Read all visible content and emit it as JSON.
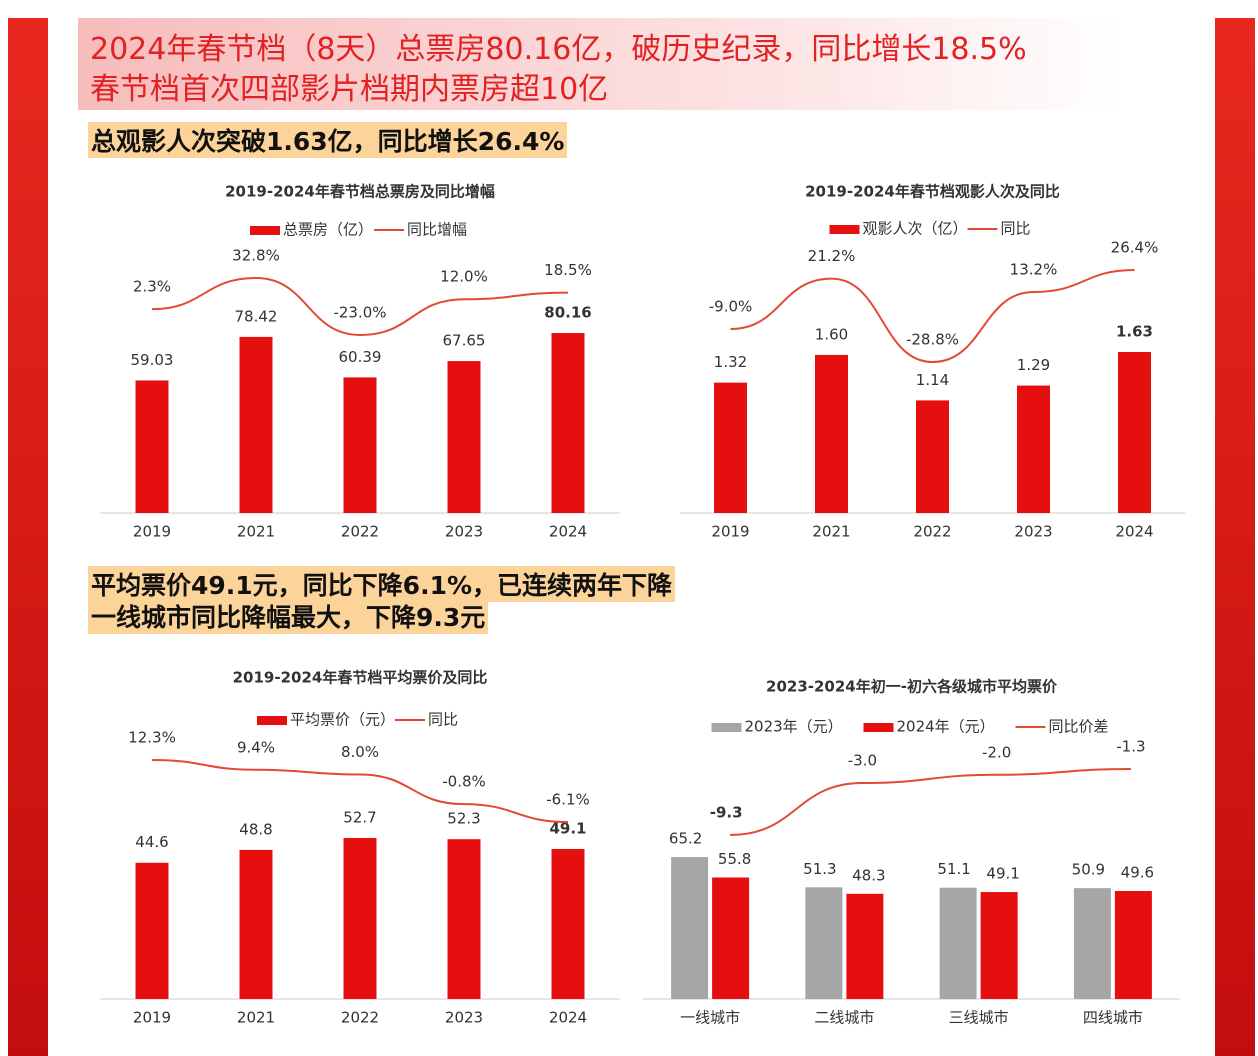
{
  "headlines": {
    "title_lines": [
      "2024年春节档（8天）总票房80.16亿，破历史纪录，同比增长18.5%",
      "春节档首次四部影片档期内票房超10亿"
    ],
    "section1": "总观影人次突破1.63亿，同比增长26.4%",
    "section2_lines": [
      "平均票价49.1元，同比下降6.1%，已连续两年下降",
      "一线城市同比降幅最大，下降9.3元"
    ]
  },
  "chart_data": [
    {
      "type": "combo",
      "title": "2019-2024年春节档总票房及同比增幅",
      "categories": [
        "2019",
        "2021",
        "2022",
        "2023",
        "2024"
      ],
      "series": [
        {
          "name": "总票房（亿）",
          "type": "bar",
          "color": "#e60f0f",
          "values": [
            59.03,
            78.42,
            60.39,
            67.65,
            80.16
          ]
        },
        {
          "name": "同比增幅",
          "type": "line",
          "color": "#e24a33",
          "values": [
            2.3,
            32.8,
            -23.0,
            12.0,
            18.5
          ],
          "value_labels": [
            "2.3%",
            "32.8%",
            "-23.0%",
            "12.0%",
            "18.5%"
          ]
        }
      ]
    },
    {
      "type": "combo",
      "title": "2019-2024年春节档观影人次及同比",
      "categories": [
        "2019",
        "2021",
        "2022",
        "2023",
        "2024"
      ],
      "series": [
        {
          "name": "观影人次（亿）",
          "type": "bar",
          "color": "#e60f0f",
          "values": [
            1.32,
            1.6,
            1.14,
            1.29,
            1.63
          ],
          "value_labels": [
            "1.32",
            "1.60",
            "1.14",
            "1.29",
            "1.63"
          ]
        },
        {
          "name": "同比",
          "type": "line",
          "color": "#e24a33",
          "values": [
            -9.0,
            21.2,
            -28.8,
            13.2,
            26.4
          ],
          "value_labels": [
            "-9.0%",
            "21.2%",
            "-28.8%",
            "13.2%",
            "26.4%"
          ]
        }
      ]
    },
    {
      "type": "combo",
      "title": "2019-2024年春节档平均票价及同比",
      "categories": [
        "2019",
        "2021",
        "2022",
        "2023",
        "2024"
      ],
      "series": [
        {
          "name": "平均票价（元）",
          "type": "bar",
          "color": "#e60f0f",
          "values": [
            44.6,
            48.8,
            52.7,
            52.3,
            49.1
          ]
        },
        {
          "name": "同比",
          "type": "line",
          "color": "#e24a33",
          "values": [
            12.3,
            9.4,
            8.0,
            -0.8,
            -6.1
          ],
          "value_labels": [
            "12.3%",
            "9.4%",
            "8.0%",
            "-0.8%",
            "-6.1%"
          ]
        }
      ]
    },
    {
      "type": "combo",
      "title": "2023-2024年初一-初六各级城市平均票价",
      "categories": [
        "一线城市",
        "二线城市",
        "三线城市",
        "四线城市"
      ],
      "series": [
        {
          "name": "2023年（元）",
          "type": "bar",
          "color": "#a6a6a6",
          "values": [
            65.2,
            51.3,
            51.1,
            50.9
          ]
        },
        {
          "name": "2024年（元）",
          "type": "bar",
          "color": "#e60f0f",
          "values": [
            55.8,
            48.3,
            49.1,
            49.6
          ]
        },
        {
          "name": "同比价差",
          "type": "line",
          "color": "#e24a33",
          "values": [
            -9.3,
            -3.0,
            -2.0,
            -1.3
          ],
          "value_labels": [
            "-9.3",
            "-3.0",
            "-2.0",
            "-1.3"
          ]
        }
      ]
    }
  ]
}
